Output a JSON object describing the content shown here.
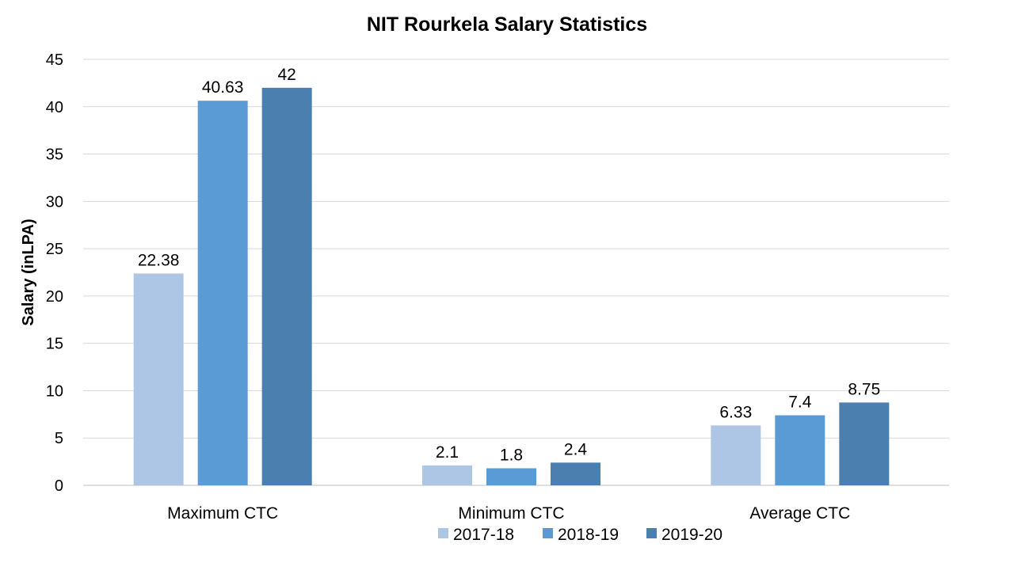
{
  "chart_data": {
    "type": "bar",
    "title": "NIT Rourkela Salary Statistics",
    "xlabel": "",
    "ylabel": "Salary (inLPA)",
    "ylim": [
      0,
      45
    ],
    "yticks": [
      0,
      5,
      10,
      15,
      20,
      25,
      30,
      35,
      40,
      45
    ],
    "grid": true,
    "legend_position": "bottom",
    "categories": [
      "Maximum CTC",
      "Minimum CTC",
      "Average CTC"
    ],
    "series": [
      {
        "name": "2017-18",
        "color": "#aec6e6",
        "values": [
          22.38,
          2.1,
          6.33
        ],
        "labels": [
          "22.38",
          "2.1",
          "6.33"
        ]
      },
      {
        "name": "2018-19",
        "color": "#5b9bd5",
        "values": [
          40.63,
          1.8,
          7.4
        ],
        "labels": [
          "40.63",
          "1.8",
          "7.4"
        ]
      },
      {
        "name": "2019-20",
        "color": "#4a7fb0",
        "values": [
          42,
          2.4,
          8.75
        ],
        "labels": [
          "42",
          "2.4",
          "8.75"
        ]
      }
    ]
  }
}
